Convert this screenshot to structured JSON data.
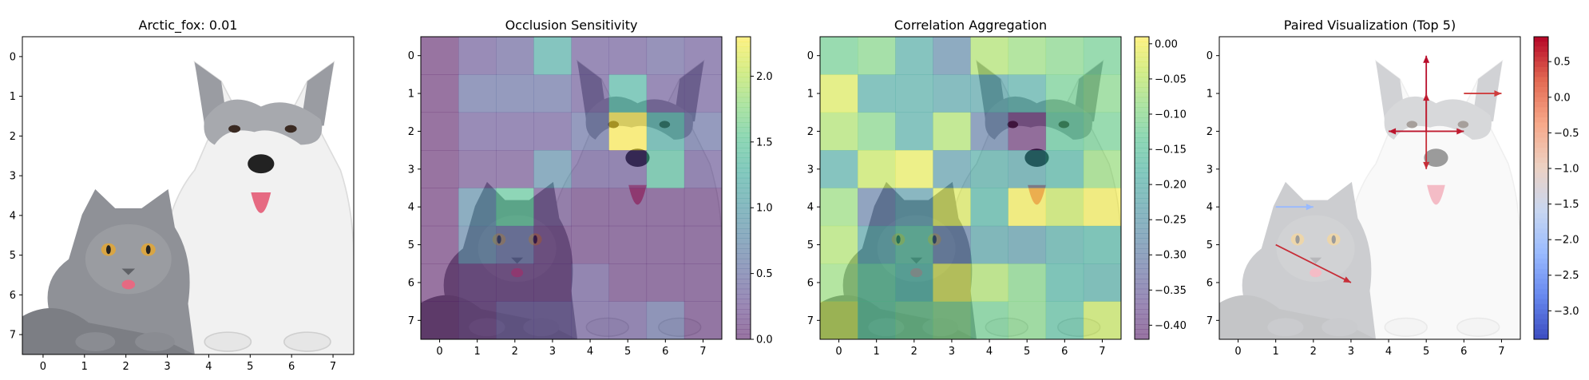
{
  "colors": {
    "viridis": [
      "#440154",
      "#482878",
      "#3e4989",
      "#31688e",
      "#26828e",
      "#1f9e89",
      "#35b779",
      "#6ece58",
      "#b5de2b",
      "#fde725"
    ],
    "coolwarm": [
      "#3b4cc0",
      "#6788ee",
      "#9abbff",
      "#c9d7f0",
      "#edd1c2",
      "#f7a889",
      "#e26952",
      "#b40426"
    ],
    "fur_white": "#efefef",
    "fur_gray": "#8f9197",
    "fur_dark": "#5f6166",
    "nose": "#222222",
    "tongue": "#e66a82",
    "eye_cat": "#d8a544"
  },
  "chart_data": [
    {
      "type": "image",
      "title": "Arctic_fox: 0.01",
      "xticks": [
        0,
        1,
        2,
        3,
        4,
        5,
        6,
        7
      ],
      "yticks": [
        0,
        1,
        2,
        3,
        4,
        5,
        6,
        7
      ],
      "xlim": [
        -0.5,
        7.5
      ],
      "ylim": [
        7.5,
        -0.5
      ],
      "content": "photo of a gray cat and a husky dog"
    },
    {
      "type": "heatmap",
      "title": "Occlusion Sensitivity",
      "xticks": [
        0,
        1,
        2,
        3,
        4,
        5,
        6,
        7
      ],
      "yticks": [
        0,
        1,
        2,
        3,
        4,
        5,
        6,
        7
      ],
      "xlim": [
        -0.5,
        7.5
      ],
      "ylim": [
        7.5,
        -0.5
      ],
      "colormap": "viridis",
      "vmin": 0,
      "vmax": 2.3,
      "colorbar_ticks": [
        "0.0",
        "0.5",
        "1.0",
        "1.5",
        "2.0"
      ],
      "colorbar_values": [
        0,
        0.5,
        1.0,
        1.5,
        2.0
      ],
      "values": [
        [
          0.0,
          0.3,
          0.4,
          1.2,
          0.3,
          0.3,
          0.4,
          0.3
        ],
        [
          0.0,
          0.5,
          0.5,
          0.5,
          0.3,
          1.3,
          0.3,
          0.3
        ],
        [
          0.0,
          0.3,
          0.3,
          0.3,
          0.5,
          2.3,
          1.2,
          0.5
        ],
        [
          0.0,
          0.2,
          0.2,
          0.8,
          0.3,
          0.3,
          1.4,
          0.3
        ],
        [
          0.0,
          0.8,
          1.5,
          0.2,
          0.1,
          0.1,
          0.1,
          0.1
        ],
        [
          0.0,
          0.7,
          0.5,
          0.1,
          0.1,
          0.1,
          0.1,
          0.1
        ],
        [
          0.0,
          0.1,
          0.1,
          0.1,
          0.3,
          0.1,
          0.1,
          0.1
        ],
        [
          0.0,
          0.1,
          0.3,
          0.3,
          0.3,
          0.3,
          0.5,
          0.1
        ]
      ]
    },
    {
      "type": "heatmap",
      "title": "Correlation Aggregation",
      "xticks": [
        0,
        1,
        2,
        3,
        4,
        5,
        6,
        7
      ],
      "yticks": [
        0,
        1,
        2,
        3,
        4,
        5,
        6,
        7
      ],
      "xlim": [
        -0.5,
        7.5
      ],
      "ylim": [
        7.5,
        -0.5
      ],
      "colormap": "viridis",
      "vmin": -0.42,
      "vmax": 0.01,
      "colorbar_ticks": [
        "0.00",
        "−0.05",
        "−0.10",
        "−0.15",
        "−0.20",
        "−0.25",
        "−0.30",
        "−0.35",
        "−0.40"
      ],
      "colorbar_values": [
        0,
        -0.05,
        -0.1,
        -0.15,
        -0.2,
        -0.25,
        -0.3,
        -0.35,
        -0.4
      ],
      "values": [
        [
          -0.12,
          -0.1,
          -0.2,
          -0.28,
          -0.06,
          -0.08,
          -0.1,
          -0.12
        ],
        [
          -0.02,
          -0.2,
          -0.2,
          -0.22,
          -0.22,
          -0.2,
          -0.12,
          -0.1
        ],
        [
          -0.06,
          -0.1,
          -0.2,
          -0.06,
          -0.3,
          -0.42,
          -0.14,
          -0.12
        ],
        [
          -0.2,
          -0.04,
          -0.01,
          -0.24,
          -0.2,
          -0.22,
          -0.18,
          -0.08
        ],
        [
          -0.08,
          -0.3,
          -0.24,
          -0.02,
          -0.18,
          0.0,
          -0.04,
          0.0
        ],
        [
          -0.06,
          -0.22,
          -0.16,
          -0.3,
          -0.22,
          -0.24,
          -0.2,
          -0.18
        ],
        [
          -0.08,
          -0.14,
          -0.18,
          -0.02,
          -0.06,
          -0.1,
          -0.18,
          -0.2
        ],
        [
          -0.04,
          -0.14,
          -0.12,
          -0.1,
          -0.12,
          -0.1,
          -0.16,
          -0.04
        ]
      ]
    },
    {
      "type": "quiver",
      "title": "Paired Visualization (Top 5)",
      "xticks": [
        0,
        1,
        2,
        3,
        4,
        5,
        6,
        7
      ],
      "yticks": [
        0,
        1,
        2,
        3,
        4,
        5,
        6,
        7
      ],
      "xlim": [
        -0.5,
        7.5
      ],
      "ylim": [
        7.5,
        -0.5
      ],
      "colormap": "coolwarm",
      "vmin": -3.4,
      "vmax": 0.85,
      "colorbar_ticks": [
        "0.5",
        "0.0",
        "−0.5",
        "−1.0",
        "−1.5",
        "−2.0",
        "−2.5",
        "−3.0"
      ],
      "colorbar_values": [
        0.5,
        0,
        -0.5,
        -1.0,
        -1.5,
        -2.0,
        -2.5,
        -3.0
      ],
      "arrows": [
        {
          "x1": 5,
          "y1": 2,
          "x2": 5,
          "y2": 0,
          "value": 0.8
        },
        {
          "x1": 5,
          "y1": 2,
          "x2": 5,
          "y2": 1,
          "value": 0.7
        },
        {
          "x1": 5,
          "y1": 2,
          "x2": 5,
          "y2": 3,
          "value": 0.6
        },
        {
          "x1": 5,
          "y1": 2,
          "x2": 4,
          "y2": 2,
          "value": 0.75
        },
        {
          "x1": 5,
          "y1": 2,
          "x2": 6,
          "y2": 2,
          "value": 0.7
        },
        {
          "x1": 6,
          "y1": 1,
          "x2": 7,
          "y2": 1,
          "value": 0.5
        },
        {
          "x1": 1,
          "y1": 4,
          "x2": 2,
          "y2": 4,
          "value": -2.2
        },
        {
          "x1": 1,
          "y1": 5,
          "x2": 3,
          "y2": 6,
          "value": 0.6
        }
      ]
    }
  ]
}
